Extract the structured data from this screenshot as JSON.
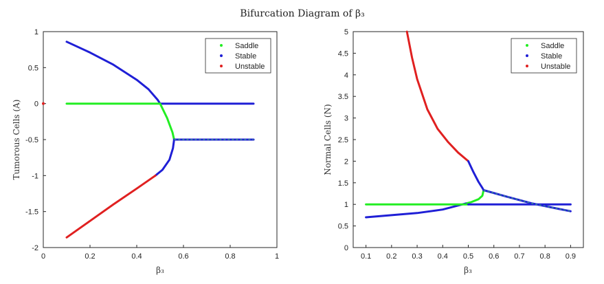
{
  "figure": {
    "title": "Bifurcation Diagram of β₃"
  },
  "colors": {
    "saddle": "#22ee22",
    "stable": "#1f1fd6",
    "unstable": "#e02020",
    "teal_dash": "#3a9a8a"
  },
  "legend": {
    "saddle": "Saddle",
    "stable": "Stable",
    "unstable": "Unstable"
  },
  "chart_data": [
    {
      "type": "scatter",
      "xlabel": "β₃",
      "ylabel": "Tumorous Cells (A)",
      "xlim": [
        0,
        1
      ],
      "ylim": [
        -2,
        1
      ],
      "xticks": [
        0,
        0.2,
        0.4,
        0.6,
        0.8,
        1
      ],
      "xtick_labels": [
        "0",
        "0.2",
        "0.4",
        "0.6",
        "0.8",
        "1"
      ],
      "yticks": [
        -2,
        -1.5,
        -1,
        -0.5,
        0,
        0.5,
        1
      ],
      "ytick_labels": [
        "-2",
        "-1.5",
        "-1",
        "-0.5",
        "0",
        "0.5",
        "1"
      ],
      "legend_position": "top-right",
      "series": [
        {
          "name": "Stable",
          "kind": "stable",
          "points": [
            [
              0.1,
              0.86
            ],
            [
              0.2,
              0.71
            ],
            [
              0.3,
              0.54
            ],
            [
              0.4,
              0.33
            ],
            [
              0.45,
              0.2
            ],
            [
              0.49,
              0.05
            ],
            [
              0.5,
              0.0
            ],
            [
              0.9,
              0.0
            ]
          ]
        },
        {
          "name": "Saddle",
          "kind": "saddle",
          "points": [
            [
              0.1,
              0.0
            ],
            [
              0.5,
              0.0
            ],
            [
              0.53,
              -0.2
            ],
            [
              0.553,
              -0.4
            ],
            [
              0.56,
              -0.5
            ]
          ]
        },
        {
          "name": "Stable",
          "kind": "stable",
          "points": [
            [
              0.56,
              -0.5
            ],
            [
              0.555,
              -0.62
            ],
            [
              0.54,
              -0.78
            ],
            [
              0.51,
              -0.92
            ],
            [
              0.48,
              -1.0
            ]
          ]
        },
        {
          "name": "Unstable",
          "kind": "unstable",
          "points": [
            [
              0.48,
              -1.0
            ],
            [
              0.4,
              -1.18
            ],
            [
              0.3,
              -1.4
            ],
            [
              0.2,
              -1.63
            ],
            [
              0.1,
              -1.86
            ]
          ]
        },
        {
          "name": "Stable",
          "kind": "stable_dashed",
          "points": [
            [
              0.56,
              -0.5
            ],
            [
              0.9,
              -0.5
            ]
          ]
        },
        {
          "name": "Unstable",
          "kind": "unstable",
          "points": [
            [
              0.0,
              0.0
            ]
          ]
        }
      ]
    },
    {
      "type": "scatter",
      "xlabel": "β₃",
      "ylabel": "Normal Cells (N)",
      "xlim": [
        0.05,
        0.95
      ],
      "ylim": [
        0,
        5
      ],
      "xticks": [
        0.1,
        0.2,
        0.3,
        0.4,
        0.5,
        0.6,
        0.7,
        0.8,
        0.9
      ],
      "xtick_labels": [
        "0.1",
        "0.2",
        "0.3",
        "0.4",
        "0.5",
        "0.6",
        "0.7",
        "0.8",
        "0.9"
      ],
      "yticks": [
        0,
        0.5,
        1,
        1.5,
        2,
        2.5,
        3,
        3.5,
        4,
        4.5,
        5
      ],
      "ytick_labels": [
        "0",
        "0.5",
        "1",
        "1.5",
        "2",
        "2.5",
        "3",
        "3.5",
        "4",
        "4.5",
        "5"
      ],
      "legend_position": "top-right",
      "series": [
        {
          "name": "Unstable",
          "kind": "unstable",
          "points": [
            [
              0.26,
              5.0
            ],
            [
              0.28,
              4.4
            ],
            [
              0.3,
              3.9
            ],
            [
              0.34,
              3.2
            ],
            [
              0.38,
              2.75
            ],
            [
              0.42,
              2.45
            ],
            [
              0.46,
              2.2
            ],
            [
              0.5,
              2.0
            ]
          ]
        },
        {
          "name": "Stable",
          "kind": "stable",
          "points": [
            [
              0.5,
              2.0
            ],
            [
              0.52,
              1.75
            ],
            [
              0.54,
              1.52
            ],
            [
              0.555,
              1.38
            ],
            [
              0.56,
              1.33
            ]
          ]
        },
        {
          "name": "Saddle",
          "kind": "saddle",
          "points": [
            [
              0.56,
              1.33
            ],
            [
              0.555,
              1.2
            ],
            [
              0.54,
              1.12
            ],
            [
              0.51,
              1.05
            ],
            [
              0.49,
              1.02
            ]
          ]
        },
        {
          "name": "Stable",
          "kind": "stable",
          "points": [
            [
              0.49,
              1.02
            ],
            [
              0.4,
              0.88
            ],
            [
              0.3,
              0.8
            ],
            [
              0.2,
              0.75
            ],
            [
              0.1,
              0.7
            ]
          ]
        },
        {
          "name": "Saddle",
          "kind": "saddle",
          "points": [
            [
              0.1,
              1.0
            ],
            [
              0.5,
              1.0
            ]
          ]
        },
        {
          "name": "Stable",
          "kind": "stable",
          "points": [
            [
              0.5,
              1.0
            ],
            [
              0.9,
              1.0
            ]
          ]
        },
        {
          "name": "Stable",
          "kind": "stable_dashed",
          "points": [
            [
              0.56,
              1.33
            ],
            [
              0.65,
              1.18
            ],
            [
              0.75,
              1.02
            ],
            [
              0.85,
              0.9
            ],
            [
              0.9,
              0.84
            ]
          ]
        }
      ]
    }
  ]
}
